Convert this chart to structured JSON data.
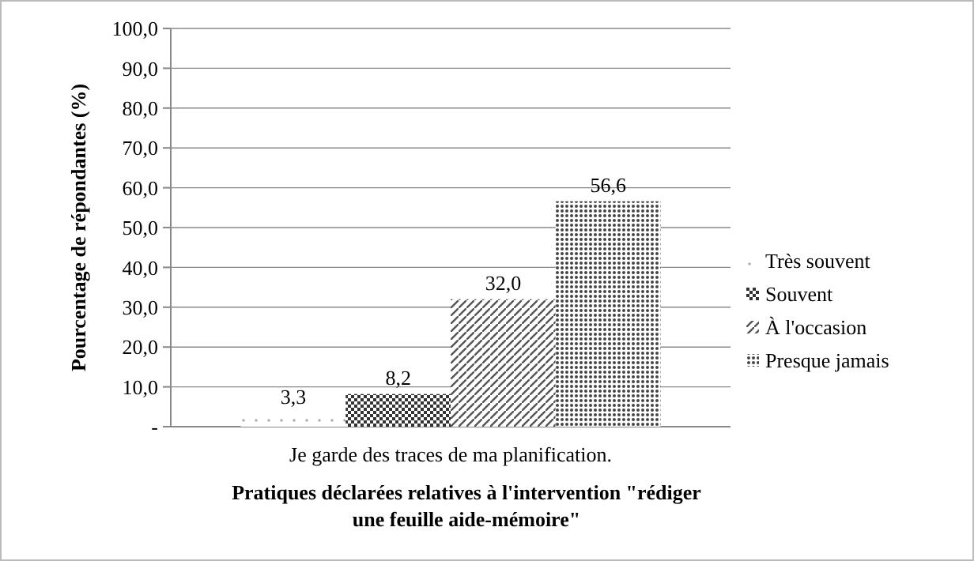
{
  "chart_data": {
    "type": "bar",
    "categories": [
      "Je garde des traces de ma planification."
    ],
    "series": [
      {
        "name": "Très souvent",
        "color": "#b0b0b0",
        "values": [
          3.3
        ],
        "value_labels": [
          "3,3"
        ]
      },
      {
        "name": "Souvent",
        "color": "#333333",
        "values": [
          8.2
        ],
        "value_labels": [
          "8,2"
        ]
      },
      {
        "name": "À l'occasion",
        "color": "#555555",
        "values": [
          32.0
        ],
        "value_labels": [
          "32,0"
        ]
      },
      {
        "name": "Presque jamais",
        "color": "#444444",
        "values": [
          56.6
        ],
        "value_labels": [
          "56,6"
        ]
      }
    ],
    "xlabel": "Pratiques déclarées relatives à l'intervention \"rédiger une feuille aide-mémoire\"",
    "ylabel": "Pourcentage de répondantes (%)",
    "ylim": [
      0,
      100
    ],
    "yticks": [
      {
        "value": 0,
        "label": "-"
      },
      {
        "value": 10,
        "label": "10,0"
      },
      {
        "value": 20,
        "label": "20,0"
      },
      {
        "value": 30,
        "label": "30,0"
      },
      {
        "value": 40,
        "label": "40,0"
      },
      {
        "value": 50,
        "label": "50,0"
      },
      {
        "value": 60,
        "label": "60,0"
      },
      {
        "value": 70,
        "label": "70,0"
      },
      {
        "value": 80,
        "label": "80,0"
      },
      {
        "value": 90,
        "label": "90,0"
      },
      {
        "value": 100,
        "label": "100,0"
      }
    ],
    "grid": "y",
    "legend": "right"
  }
}
